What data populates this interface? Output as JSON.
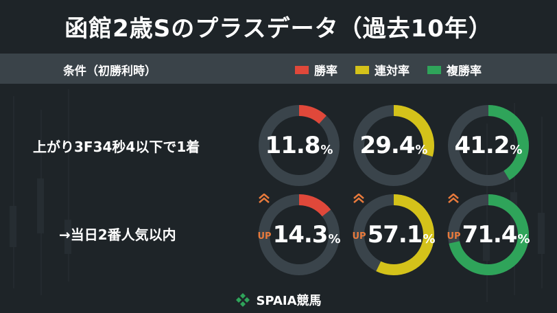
{
  "title": "函館2歳Sのプラスデータ（過去10年）",
  "header": {
    "condition_label": "条件（初勝利時）",
    "legend": [
      {
        "label": "勝率",
        "color": "#e0483a"
      },
      {
        "label": "連対率",
        "color": "#d4c21a"
      },
      {
        "label": "複勝率",
        "color": "#2fa45a"
      }
    ]
  },
  "rows": [
    {
      "label": "上がり3F34秒4以下で1着",
      "values": [
        {
          "text": "11.8",
          "unit": "%",
          "value": 11.8,
          "up": false
        },
        {
          "text": "29.4",
          "unit": "%",
          "value": 29.4,
          "up": false
        },
        {
          "text": "41.2",
          "unit": "%",
          "value": 41.2,
          "up": false
        }
      ]
    },
    {
      "label": "→当日2番人気以内",
      "values": [
        {
          "text": "14.3",
          "unit": "%",
          "value": 14.3,
          "up": true
        },
        {
          "text": "57.1",
          "unit": "%",
          "value": 57.1,
          "up": true
        },
        {
          "text": "71.4",
          "unit": "%",
          "value": 71.4,
          "up": true
        }
      ]
    }
  ],
  "up_label": "UP",
  "track_color": "#3a444b",
  "up_color": "#e87a3c",
  "footer": {
    "brand": "SPAIA競馬",
    "logo_color": "#2fa45a"
  }
}
